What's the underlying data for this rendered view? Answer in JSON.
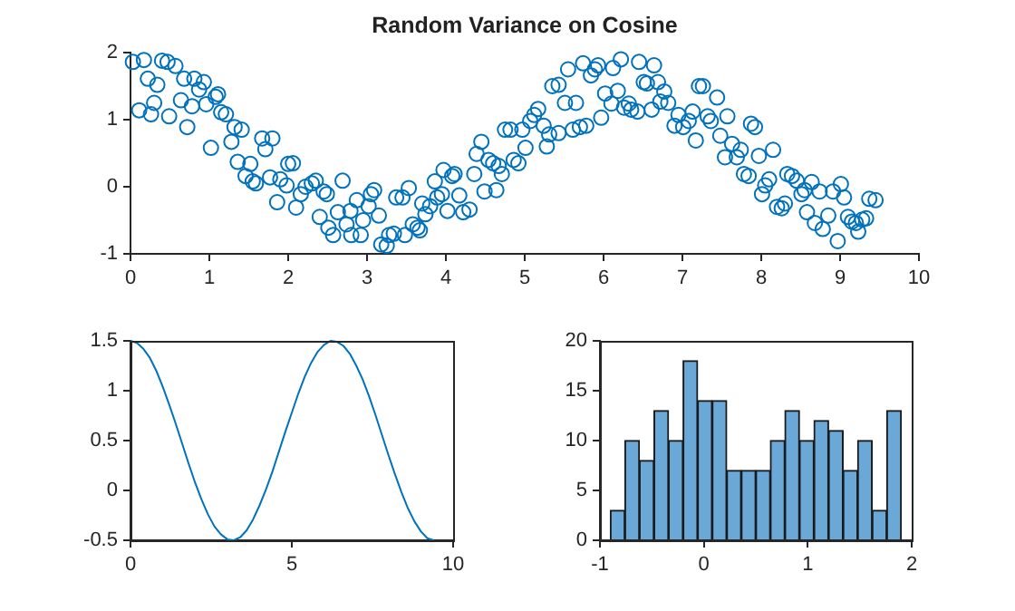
{
  "chart_data": [
    {
      "type": "scatter",
      "title": "Random Variance on Cosine",
      "color": "#0072bd",
      "marker": "circle",
      "xlim": [
        0,
        10
      ],
      "ylim": [
        -1,
        2
      ],
      "xticks": [
        0,
        1,
        2,
        3,
        4,
        5,
        6,
        7,
        8,
        9,
        10
      ],
      "yticks": [
        -1,
        0,
        1,
        2
      ],
      "x": [
        0.03,
        0.17,
        0.11,
        0.26,
        0.22,
        0.34,
        0.3,
        0.4,
        0.47,
        0.57,
        0.49,
        0.64,
        0.68,
        0.72,
        0.78,
        0.81,
        0.87,
        0.93,
        0.96,
        1.02,
        1.08,
        1.11,
        1.15,
        1.21,
        1.32,
        1.41,
        1.28,
        1.36,
        1.52,
        1.46,
        1.59,
        1.55,
        1.67,
        1.71,
        1.8,
        1.77,
        1.9,
        1.86,
        2.0,
        2.06,
        1.98,
        2.1,
        2.16,
        2.22,
        2.3,
        2.35,
        2.4,
        2.45,
        2.49,
        2.51,
        2.57,
        2.63,
        2.69,
        2.74,
        2.79,
        2.8,
        2.87,
        2.92,
        2.95,
        3.02,
        3.05,
        3.09,
        3.15,
        3.18,
        3.25,
        3.28,
        3.34,
        3.37,
        3.45,
        3.48,
        3.53,
        3.58,
        3.64,
        3.67,
        3.7,
        3.74,
        3.8,
        3.86,
        3.89,
        3.95,
        3.97,
        4.02,
        4.08,
        4.11,
        4.17,
        4.22,
        4.3,
        4.36,
        4.39,
        4.45,
        4.49,
        4.54,
        4.6,
        4.64,
        4.67,
        4.71,
        4.75,
        4.82,
        4.86,
        4.92,
        4.97,
        5.01,
        5.07,
        5.12,
        5.17,
        5.24,
        5.28,
        5.31,
        5.35,
        5.43,
        5.43,
        5.51,
        5.55,
        5.61,
        5.65,
        5.7,
        5.74,
        5.78,
        5.84,
        5.89,
        5.93,
        5.97,
        6.02,
        6.1,
        6.12,
        6.18,
        6.22,
        6.26,
        6.32,
        6.35,
        6.43,
        6.45,
        6.51,
        6.55,
        6.61,
        6.64,
        6.69,
        6.72,
        6.77,
        6.82,
        6.9,
        6.95,
        7.01,
        7.08,
        7.13,
        7.17,
        7.21,
        7.26,
        7.32,
        7.36,
        7.44,
        7.48,
        7.54,
        7.57,
        7.63,
        7.69,
        7.74,
        7.78,
        7.84,
        7.87,
        7.92,
        7.97,
        8.01,
        8.05,
        8.1,
        8.15,
        8.2,
        8.26,
        8.3,
        8.33,
        8.39,
        8.45,
        8.51,
        8.55,
        8.58,
        8.64,
        8.68,
        8.74,
        8.78,
        8.85,
        8.91,
        8.97,
        9.01,
        9.05,
        9.1,
        9.15,
        9.2,
        9.23,
        9.28,
        9.33,
        9.37,
        9.45
      ],
      "values": [
        1.86,
        1.89,
        1.14,
        1.08,
        1.61,
        1.52,
        1.25,
        1.88,
        1.86,
        1.8,
        1.05,
        1.29,
        1.61,
        0.89,
        1.2,
        1.61,
        1.45,
        1.56,
        1.23,
        0.58,
        1.34,
        1.38,
        1.11,
        1.08,
        0.89,
        0.85,
        0.67,
        0.37,
        0.34,
        0.16,
        0.05,
        0.08,
        0.72,
        0.56,
        0.72,
        0.14,
        0.11,
        -0.23,
        0.34,
        0.35,
        0.02,
        -0.31,
        -0.11,
        0,
        0.05,
        0.09,
        -0.45,
        -0.07,
        -0.11,
        -0.61,
        -0.72,
        -0.38,
        0.09,
        -0.56,
        -0.36,
        -0.72,
        -0.2,
        -0.72,
        -0.5,
        -0.29,
        -0.11,
        -0.05,
        -0.43,
        -0.86,
        -0.88,
        -0.72,
        -0.7,
        -0.16,
        -0.16,
        -0.72,
        -0.02,
        -0.56,
        -0.61,
        -0.65,
        -0.25,
        -0.41,
        -0.29,
        0.08,
        -0.16,
        -0.11,
        0.25,
        -0.36,
        0.16,
        0.19,
        -0.13,
        -0.38,
        -0.34,
        0.19,
        0.49,
        0.67,
        -0.07,
        0.4,
        0.35,
        -0.05,
        0.31,
        0.19,
        0.85,
        0.85,
        0.4,
        0.35,
        0.85,
        0.58,
        0.98,
        1.07,
        1.16,
        0.91,
        0.6,
        0.78,
        1.5,
        1.52,
        0.8,
        1.25,
        1.75,
        0.85,
        1.25,
        0.89,
        1.84,
        0.91,
        1.66,
        1.75,
        1.81,
        1.03,
        1.39,
        1.24,
        1.77,
        1.43,
        1.9,
        1.18,
        1.24,
        1.15,
        1.12,
        1.86,
        1.56,
        1.54,
        1.15,
        1.81,
        1.56,
        1.27,
        1.42,
        1.25,
        0.91,
        1.07,
        0.89,
        0.98,
        1.12,
        0.69,
        1.5,
        1.5,
        1.05,
        0.98,
        1.33,
        0.76,
        0.44,
        1.05,
        0.64,
        0.44,
        0.55,
        0.19,
        0.16,
        0.94,
        0.89,
        0.46,
        -0.11,
        0.02,
        0.11,
        0.55,
        -0.3,
        -0.32,
        -0.25,
        0.19,
        0.16,
        0.09,
        -0.11,
        -0.05,
        -0.38,
        0.07,
        -0.54,
        -0.07,
        -0.63,
        -0.43,
        -0.07,
        -0.81,
        0.04,
        -0.16,
        -0.45,
        -0.52,
        -0.54,
        -0.67,
        -0.49,
        -0.47,
        -0.18,
        -0.2
      ]
    },
    {
      "type": "line",
      "color": "#0072bd",
      "xlim": [
        0,
        10
      ],
      "ylim": [
        -0.5,
        1.5
      ],
      "xticks": [
        0,
        5,
        10
      ],
      "yticks": [
        -0.5,
        0,
        0.5,
        1,
        1.5
      ],
      "x": [
        0,
        0.2,
        0.4,
        0.6,
        0.8,
        1,
        1.2,
        1.4,
        1.6,
        1.8,
        2,
        2.2,
        2.4,
        2.6,
        2.8,
        3,
        3.2,
        3.4,
        3.6,
        3.8,
        4,
        4.2,
        4.4,
        4.6,
        4.8,
        5,
        5.2,
        5.4,
        5.6,
        5.8,
        6,
        6.2,
        6.4,
        6.6,
        6.8,
        7,
        7.2,
        7.4,
        7.6,
        7.8,
        8,
        8.2,
        8.4,
        8.6,
        8.8,
        9,
        9.2,
        9.4
      ],
      "values": [
        1.5,
        1.48,
        1.42,
        1.33,
        1.2,
        1.04,
        0.86,
        0.67,
        0.47,
        0.27,
        0.08,
        -0.09,
        -0.24,
        -0.36,
        -0.44,
        -0.49,
        -0.5,
        -0.47,
        -0.4,
        -0.29,
        -0.15,
        0.01,
        0.19,
        0.39,
        0.59,
        0.78,
        0.97,
        1.14,
        1.28,
        1.39,
        1.46,
        1.5,
        1.49,
        1.45,
        1.37,
        1.25,
        1.11,
        0.94,
        0.75,
        0.55,
        0.35,
        0.16,
        -0.02,
        -0.18,
        -0.31,
        -0.41,
        -0.48,
        -0.5
      ]
    },
    {
      "type": "histogram",
      "color": "#6aa8d8",
      "xlim": [
        -1,
        2
      ],
      "ylim": [
        0,
        20
      ],
      "xticks": [
        -1,
        0,
        1,
        2
      ],
      "yticks": [
        0,
        5,
        10,
        15,
        20
      ],
      "bins": [
        -0.9,
        -0.76,
        -0.62,
        -0.48,
        -0.34,
        -0.2,
        -0.06,
        0.08,
        0.22,
        0.36,
        0.5,
        0.64,
        0.78,
        0.92,
        1.06,
        1.2,
        1.34,
        1.48,
        1.62,
        1.76,
        1.9
      ],
      "values": [
        3,
        10,
        8,
        13,
        10,
        18,
        14,
        14,
        7,
        7,
        7,
        10,
        13,
        10,
        12,
        11,
        7,
        10,
        3,
        13
      ]
    }
  ]
}
